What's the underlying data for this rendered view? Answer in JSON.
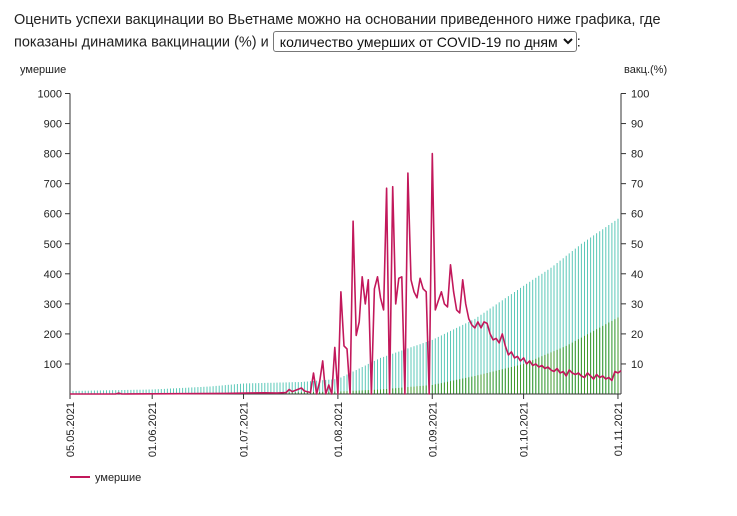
{
  "intro": {
    "text_before": "Оценить успехи вакцинации во Вьетнаме можно на основании приведенного ниже графика, где показаны динамика вакцинации (%) и ",
    "text_after": ":"
  },
  "select": {
    "selected_label": "количество умерших от COVID-19 по дням",
    "chevron_icon": "chevron-down-icon"
  },
  "colors": {
    "deaths_line": "#c2185b",
    "vacc_one_dose": "#5bc8b8",
    "vacc_full": "#3f9a2e",
    "axis": "#333333"
  },
  "chart_data": {
    "type": "line",
    "y_left_label": "умершие",
    "y_right_label": "вакц.(%)",
    "y_left_range": [
      0,
      1000
    ],
    "y_left_ticks": [
      100,
      200,
      300,
      400,
      500,
      600,
      700,
      800,
      900,
      1000
    ],
    "y_right_range": [
      0,
      100
    ],
    "y_right_ticks": [
      10,
      20,
      30,
      40,
      50,
      60,
      70,
      80,
      90,
      100
    ],
    "x_range": [
      "2021-05-05",
      "2021-11-02"
    ],
    "x_tick_labels": [
      "05.05.2021",
      "01.06.2021",
      "01.07.2021",
      "01.08.2021",
      "01.09.2021",
      "01.10.2021",
      "01.11.2021"
    ],
    "x_tick_dates": [
      "2021-05-05",
      "2021-06-01",
      "2021-07-01",
      "2021-08-01",
      "2021-09-01",
      "2021-10-01",
      "2021-11-01"
    ],
    "legend": [
      {
        "name": "умершие",
        "position": "bottom-left"
      }
    ],
    "series": [
      {
        "name": "умершие",
        "kind": "line",
        "axis": "left",
        "points": [
          [
            "2021-05-05",
            0
          ],
          [
            "2021-05-20",
            0
          ],
          [
            "2021-05-21",
            3
          ],
          [
            "2021-05-22",
            0
          ],
          [
            "2021-06-10",
            1
          ],
          [
            "2021-06-25",
            2
          ],
          [
            "2021-07-02",
            3
          ],
          [
            "2021-07-08",
            4
          ],
          [
            "2021-07-12",
            3
          ],
          [
            "2021-07-15",
            5
          ],
          [
            "2021-07-16",
            15
          ],
          [
            "2021-07-17",
            8
          ],
          [
            "2021-07-20",
            20
          ],
          [
            "2021-07-21",
            10
          ],
          [
            "2021-07-23",
            5
          ],
          [
            "2021-07-24",
            70
          ],
          [
            "2021-07-25",
            0
          ],
          [
            "2021-07-26",
            40
          ],
          [
            "2021-07-27",
            110
          ],
          [
            "2021-07-28",
            0
          ],
          [
            "2021-07-29",
            30
          ],
          [
            "2021-07-30",
            0
          ],
          [
            "2021-07-31",
            155
          ],
          [
            "2021-08-01",
            0
          ],
          [
            "2021-08-02",
            340
          ],
          [
            "2021-08-03",
            160
          ],
          [
            "2021-08-04",
            150
          ],
          [
            "2021-08-05",
            0
          ],
          [
            "2021-08-06",
            575
          ],
          [
            "2021-08-07",
            195
          ],
          [
            "2021-08-08",
            240
          ],
          [
            "2021-08-09",
            390
          ],
          [
            "2021-08-10",
            300
          ],
          [
            "2021-08-11",
            380
          ],
          [
            "2021-08-12",
            0
          ],
          [
            "2021-08-13",
            350
          ],
          [
            "2021-08-14",
            390
          ],
          [
            "2021-08-15",
            320
          ],
          [
            "2021-08-16",
            280
          ],
          [
            "2021-08-17",
            685
          ],
          [
            "2021-08-18",
            0
          ],
          [
            "2021-08-19",
            690
          ],
          [
            "2021-08-20",
            300
          ],
          [
            "2021-08-21",
            385
          ],
          [
            "2021-08-22",
            390
          ],
          [
            "2021-08-23",
            0
          ],
          [
            "2021-08-24",
            735
          ],
          [
            "2021-08-25",
            380
          ],
          [
            "2021-08-26",
            340
          ],
          [
            "2021-08-27",
            320
          ],
          [
            "2021-08-28",
            385
          ],
          [
            "2021-08-29",
            350
          ],
          [
            "2021-08-30",
            340
          ],
          [
            "2021-08-31",
            0
          ],
          [
            "2021-09-01",
            800
          ],
          [
            "2021-09-02",
            280
          ],
          [
            "2021-09-03",
            310
          ],
          [
            "2021-09-04",
            340
          ],
          [
            "2021-09-05",
            300
          ],
          [
            "2021-09-06",
            290
          ],
          [
            "2021-09-07",
            430
          ],
          [
            "2021-09-08",
            340
          ],
          [
            "2021-09-09",
            280
          ],
          [
            "2021-09-10",
            270
          ],
          [
            "2021-09-11",
            380
          ],
          [
            "2021-09-12",
            300
          ],
          [
            "2021-09-13",
            250
          ],
          [
            "2021-09-14",
            230
          ],
          [
            "2021-09-15",
            220
          ],
          [
            "2021-09-16",
            240
          ],
          [
            "2021-09-17",
            220
          ],
          [
            "2021-09-18",
            240
          ],
          [
            "2021-09-19",
            235
          ],
          [
            "2021-09-20",
            200
          ],
          [
            "2021-09-21",
            180
          ],
          [
            "2021-09-22",
            185
          ],
          [
            "2021-09-23",
            170
          ],
          [
            "2021-09-24",
            200
          ],
          [
            "2021-09-25",
            160
          ],
          [
            "2021-09-26",
            130
          ],
          [
            "2021-09-27",
            140
          ],
          [
            "2021-09-28",
            120
          ],
          [
            "2021-09-29",
            125
          ],
          [
            "2021-09-30",
            110
          ],
          [
            "2021-10-01",
            120
          ],
          [
            "2021-10-02",
            100
          ],
          [
            "2021-10-03",
            110
          ],
          [
            "2021-10-04",
            95
          ],
          [
            "2021-10-05",
            100
          ],
          [
            "2021-10-06",
            90
          ],
          [
            "2021-10-07",
            95
          ],
          [
            "2021-10-08",
            85
          ],
          [
            "2021-10-09",
            90
          ],
          [
            "2021-10-10",
            80
          ],
          [
            "2021-10-11",
            75
          ],
          [
            "2021-10-12",
            85
          ],
          [
            "2021-10-13",
            70
          ],
          [
            "2021-10-14",
            75
          ],
          [
            "2021-10-15",
            60
          ],
          [
            "2021-10-16",
            80
          ],
          [
            "2021-10-17",
            70
          ],
          [
            "2021-10-18",
            65
          ],
          [
            "2021-10-19",
            70
          ],
          [
            "2021-10-20",
            60
          ],
          [
            "2021-10-21",
            55
          ],
          [
            "2021-10-22",
            70
          ],
          [
            "2021-10-23",
            60
          ],
          [
            "2021-10-24",
            50
          ],
          [
            "2021-10-25",
            65
          ],
          [
            "2021-10-26",
            55
          ],
          [
            "2021-10-27",
            60
          ],
          [
            "2021-10-28",
            50
          ],
          [
            "2021-10-29",
            55
          ],
          [
            "2021-10-30",
            45
          ],
          [
            "2021-10-31",
            75
          ],
          [
            "2021-11-01",
            70
          ],
          [
            "2021-11-02",
            78
          ]
        ]
      },
      {
        "kind": "bars",
        "axis": "right",
        "description_role": "вакцинация (хотя бы одна доза), %",
        "points": [
          [
            "2021-05-05",
            1
          ],
          [
            "2021-06-01",
            1.5
          ],
          [
            "2021-06-20",
            2.5
          ],
          [
            "2021-07-01",
            3.5
          ],
          [
            "2021-07-20",
            4
          ],
          [
            "2021-08-01",
            5
          ],
          [
            "2021-08-15",
            12
          ],
          [
            "2021-09-01",
            18
          ],
          [
            "2021-09-15",
            25
          ],
          [
            "2021-10-01",
            36
          ],
          [
            "2021-10-10",
            42
          ],
          [
            "2021-10-20",
            50
          ],
          [
            "2021-11-02",
            59
          ]
        ]
      },
      {
        "kind": "bars",
        "axis": "right",
        "description_role": "вакцинация (полностью), %",
        "points": [
          [
            "2021-05-05",
            0
          ],
          [
            "2021-07-01",
            0.3
          ],
          [
            "2021-08-01",
            0.8
          ],
          [
            "2021-08-15",
            1.5
          ],
          [
            "2021-09-01",
            3
          ],
          [
            "2021-09-15",
            6
          ],
          [
            "2021-10-01",
            10
          ],
          [
            "2021-10-15",
            16
          ],
          [
            "2021-11-02",
            26
          ]
        ]
      }
    ]
  }
}
